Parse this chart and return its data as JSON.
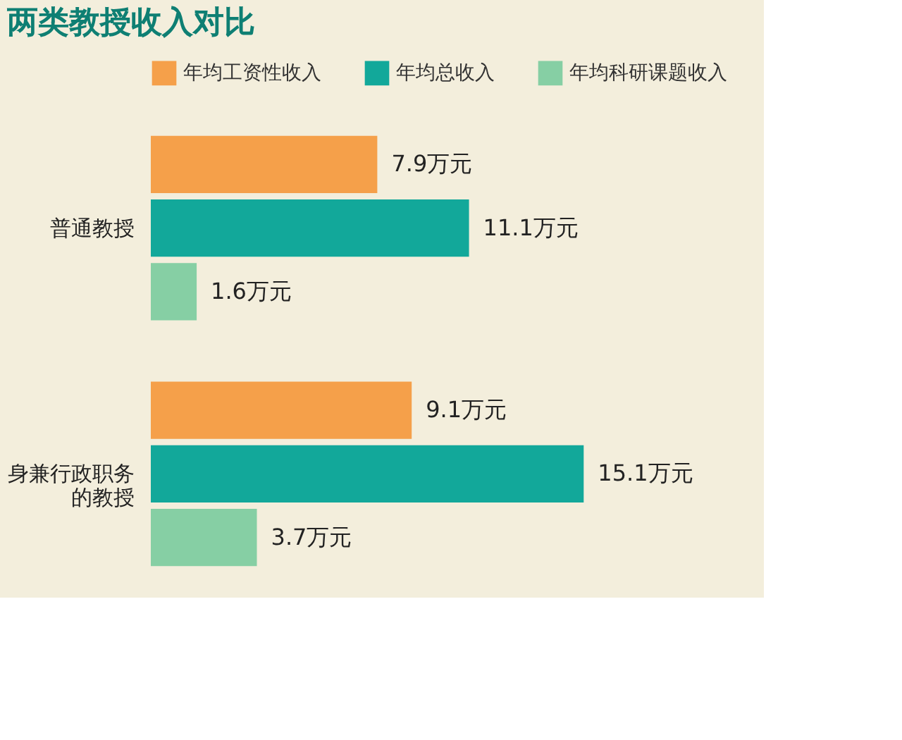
{
  "chart_data": {
    "type": "bar",
    "orientation": "horizontal",
    "title": "两类教授收入对比",
    "categories": [
      "普通教授",
      "身兼行政职务的教授"
    ],
    "series": [
      {
        "name": "年均工资性收入",
        "color": "#f5a04a",
        "values": [
          7.9,
          9.1
        ],
        "value_labels": [
          "7.9万元",
          "9.1万元"
        ]
      },
      {
        "name": "年均总收入",
        "color": "#12a89a",
        "values": [
          11.1,
          15.1
        ],
        "value_labels": [
          "11.1万元",
          "15.1万元"
        ]
      },
      {
        "name": "年均科研课题收入",
        "color": "#86cfa4",
        "values": [
          1.6,
          3.7
        ],
        "value_labels": [
          "1.6万元",
          "3.7万元"
        ]
      }
    ],
    "legend": "top"
  }
}
